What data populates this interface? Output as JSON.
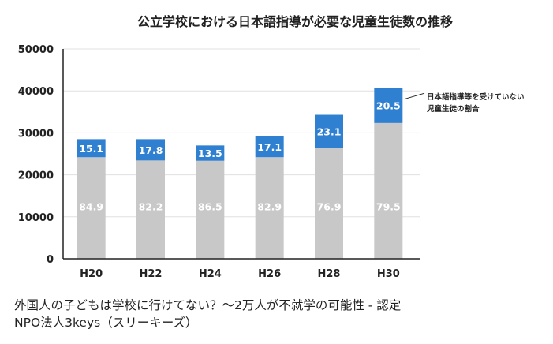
{
  "chart_data": {
    "type": "bar",
    "stacked": true,
    "title": "公立学校における日本語指導が必要な児童生徒数の推移",
    "xlabel": "",
    "ylabel": "",
    "ylim": [
      0,
      50000
    ],
    "yticks": [
      0,
      10000,
      20000,
      30000,
      40000,
      50000
    ],
    "categories": [
      "H20",
      "H22",
      "H24",
      "H26",
      "H28",
      "H30"
    ],
    "totals": [
      28500,
      28500,
      27000,
      29200,
      34300,
      40700
    ],
    "series": [
      {
        "name": "",
        "color": "#c8c8c8",
        "label_color": "#ffffff",
        "percent": [
          "84.9",
          "82.2",
          "86.5",
          "82.9",
          "76.9",
          "79.5"
        ]
      },
      {
        "name": "",
        "color": "#2f80d0",
        "label_color": "#ffffff",
        "percent": [
          "15.1",
          "17.8",
          "13.5",
          "17.1",
          "23.1",
          "20.5"
        ]
      }
    ],
    "annotation": {
      "line1": "日本語指導等を受けていない",
      "line2": "児童生徒の割合"
    },
    "grid": true,
    "axis_color": "#222222",
    "grid_color": "#e0e0e0"
  },
  "caption": {
    "line1": "外国人の子どもは学校に行けてない？〜2万人が不就学の可能性 - 認定",
    "line2": "NPO法人3keys（スリーキーズ）"
  }
}
